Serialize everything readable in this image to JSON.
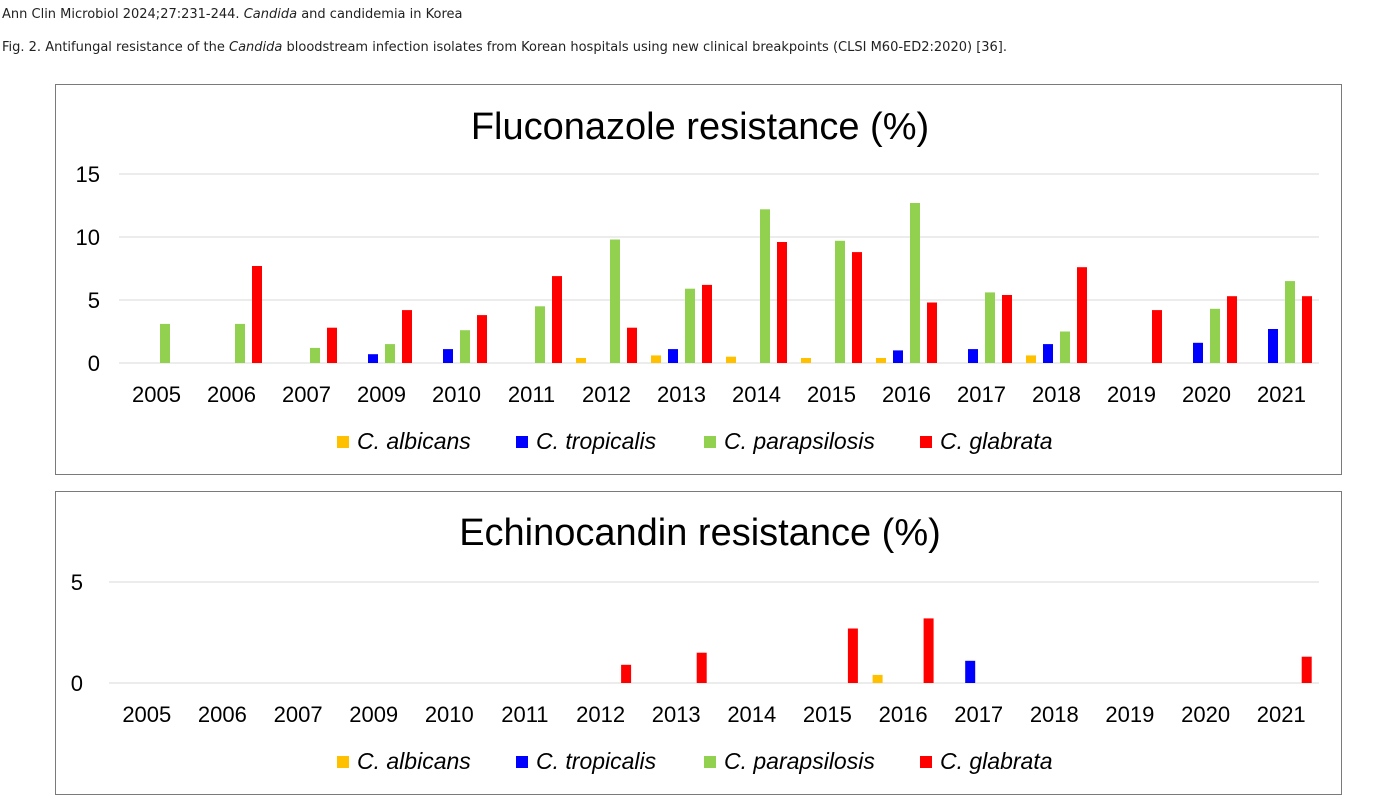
{
  "header": {
    "journal_prefix": "Ann Clin Microbiol 2024;27:231-244.",
    "journal_italic": "Candida",
    "journal_suffix": "and candidemia in Korea",
    "caption_prefix": "Fig. 2. Antifungal resistance of the",
    "caption_italic": "Candida",
    "caption_suffix": "bloodstream infection isolates from Korean hospitals using new clinical breakpoints (CLSI M60-ED2:2020) [36]."
  },
  "colors": {
    "C. albicans": "#ffc000",
    "C. tropicalis": "#0000ff",
    "C. parapsilosis": "#92d050",
    "C. glabrata": "#ff0000"
  },
  "chart_data": [
    {
      "type": "bar",
      "title": "Fluconazole resistance (%)",
      "xlabel": "",
      "ylabel": "",
      "ylim": [
        0,
        15
      ],
      "yticks": [
        0,
        5,
        10,
        15
      ],
      "grid": true,
      "legend": "bottom",
      "categories": [
        "2005",
        "2006",
        "2007",
        "2009",
        "2010",
        "2011",
        "2012",
        "2013",
        "2014",
        "2015",
        "2016",
        "2017",
        "2018",
        "2019",
        "2020",
        "2021"
      ],
      "series": [
        {
          "name": "C. albicans",
          "values": [
            0,
            0,
            0,
            0,
            0,
            0,
            0.4,
            0.6,
            0.5,
            0.4,
            0.4,
            0,
            0.6,
            0,
            0,
            0
          ]
        },
        {
          "name": "C. tropicalis",
          "values": [
            0,
            0,
            0,
            0.7,
            1.1,
            0,
            0,
            1.1,
            0,
            0,
            1.0,
            1.1,
            1.5,
            0,
            1.6,
            2.7
          ]
        },
        {
          "name": "C. parapsilosis",
          "values": [
            3.1,
            3.1,
            1.2,
            1.5,
            2.6,
            4.5,
            9.8,
            5.9,
            12.2,
            9.7,
            12.7,
            5.6,
            2.5,
            0,
            4.3,
            6.5
          ]
        },
        {
          "name": "C. glabrata",
          "values": [
            0,
            7.7,
            2.8,
            4.2,
            3.8,
            6.9,
            2.8,
            6.2,
            9.6,
            8.8,
            4.8,
            5.4,
            7.6,
            4.2,
            5.3,
            5.3
          ]
        }
      ]
    },
    {
      "type": "bar",
      "title": "Echinocandin resistance (%)",
      "xlabel": "",
      "ylabel": "",
      "ylim": [
        0,
        5
      ],
      "yticks": [
        0,
        5
      ],
      "grid": true,
      "legend": "bottom",
      "categories": [
        "2005",
        "2006",
        "2007",
        "2009",
        "2010",
        "2011",
        "2012",
        "2013",
        "2014",
        "2015",
        "2016",
        "2017",
        "2018",
        "2019",
        "2020",
        "2021"
      ],
      "series": [
        {
          "name": "C. albicans",
          "values": [
            0,
            0,
            0,
            0,
            0,
            0,
            0,
            0,
            0,
            0,
            0.4,
            0,
            0,
            0,
            0,
            0
          ]
        },
        {
          "name": "C. tropicalis",
          "values": [
            0,
            0,
            0,
            0,
            0,
            0,
            0,
            0,
            0,
            0,
            0,
            1.1,
            0,
            0,
            0,
            0
          ]
        },
        {
          "name": "C. parapsilosis",
          "values": [
            0,
            0,
            0,
            0,
            0,
            0,
            0,
            0,
            0,
            0,
            0,
            0,
            0,
            0,
            0,
            0
          ]
        },
        {
          "name": "C. glabrata",
          "values": [
            0,
            0,
            0,
            0,
            0,
            0,
            0.9,
            1.5,
            0,
            2.7,
            3.2,
            0,
            0,
            0,
            0,
            1.3
          ]
        }
      ]
    }
  ]
}
